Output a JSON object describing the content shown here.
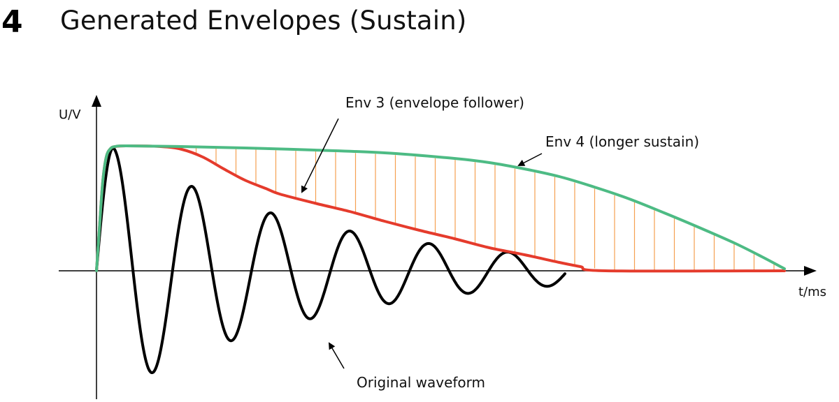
{
  "section": {
    "number": "4",
    "title": "Generated Envelopes (Sustain)"
  },
  "axes": {
    "y_label": "U/V",
    "x_label": "t/ms"
  },
  "annotations": {
    "env3": "Env 3 (envelope follower)",
    "env4": "Env 4 (longer sustain)",
    "waveform": "Original waveform"
  },
  "colors": {
    "waveform": "#000000",
    "env3": "#e53b2c",
    "env4": "#4dbb84",
    "fill_lines": "#f5a050",
    "axis": "#000000"
  }
}
